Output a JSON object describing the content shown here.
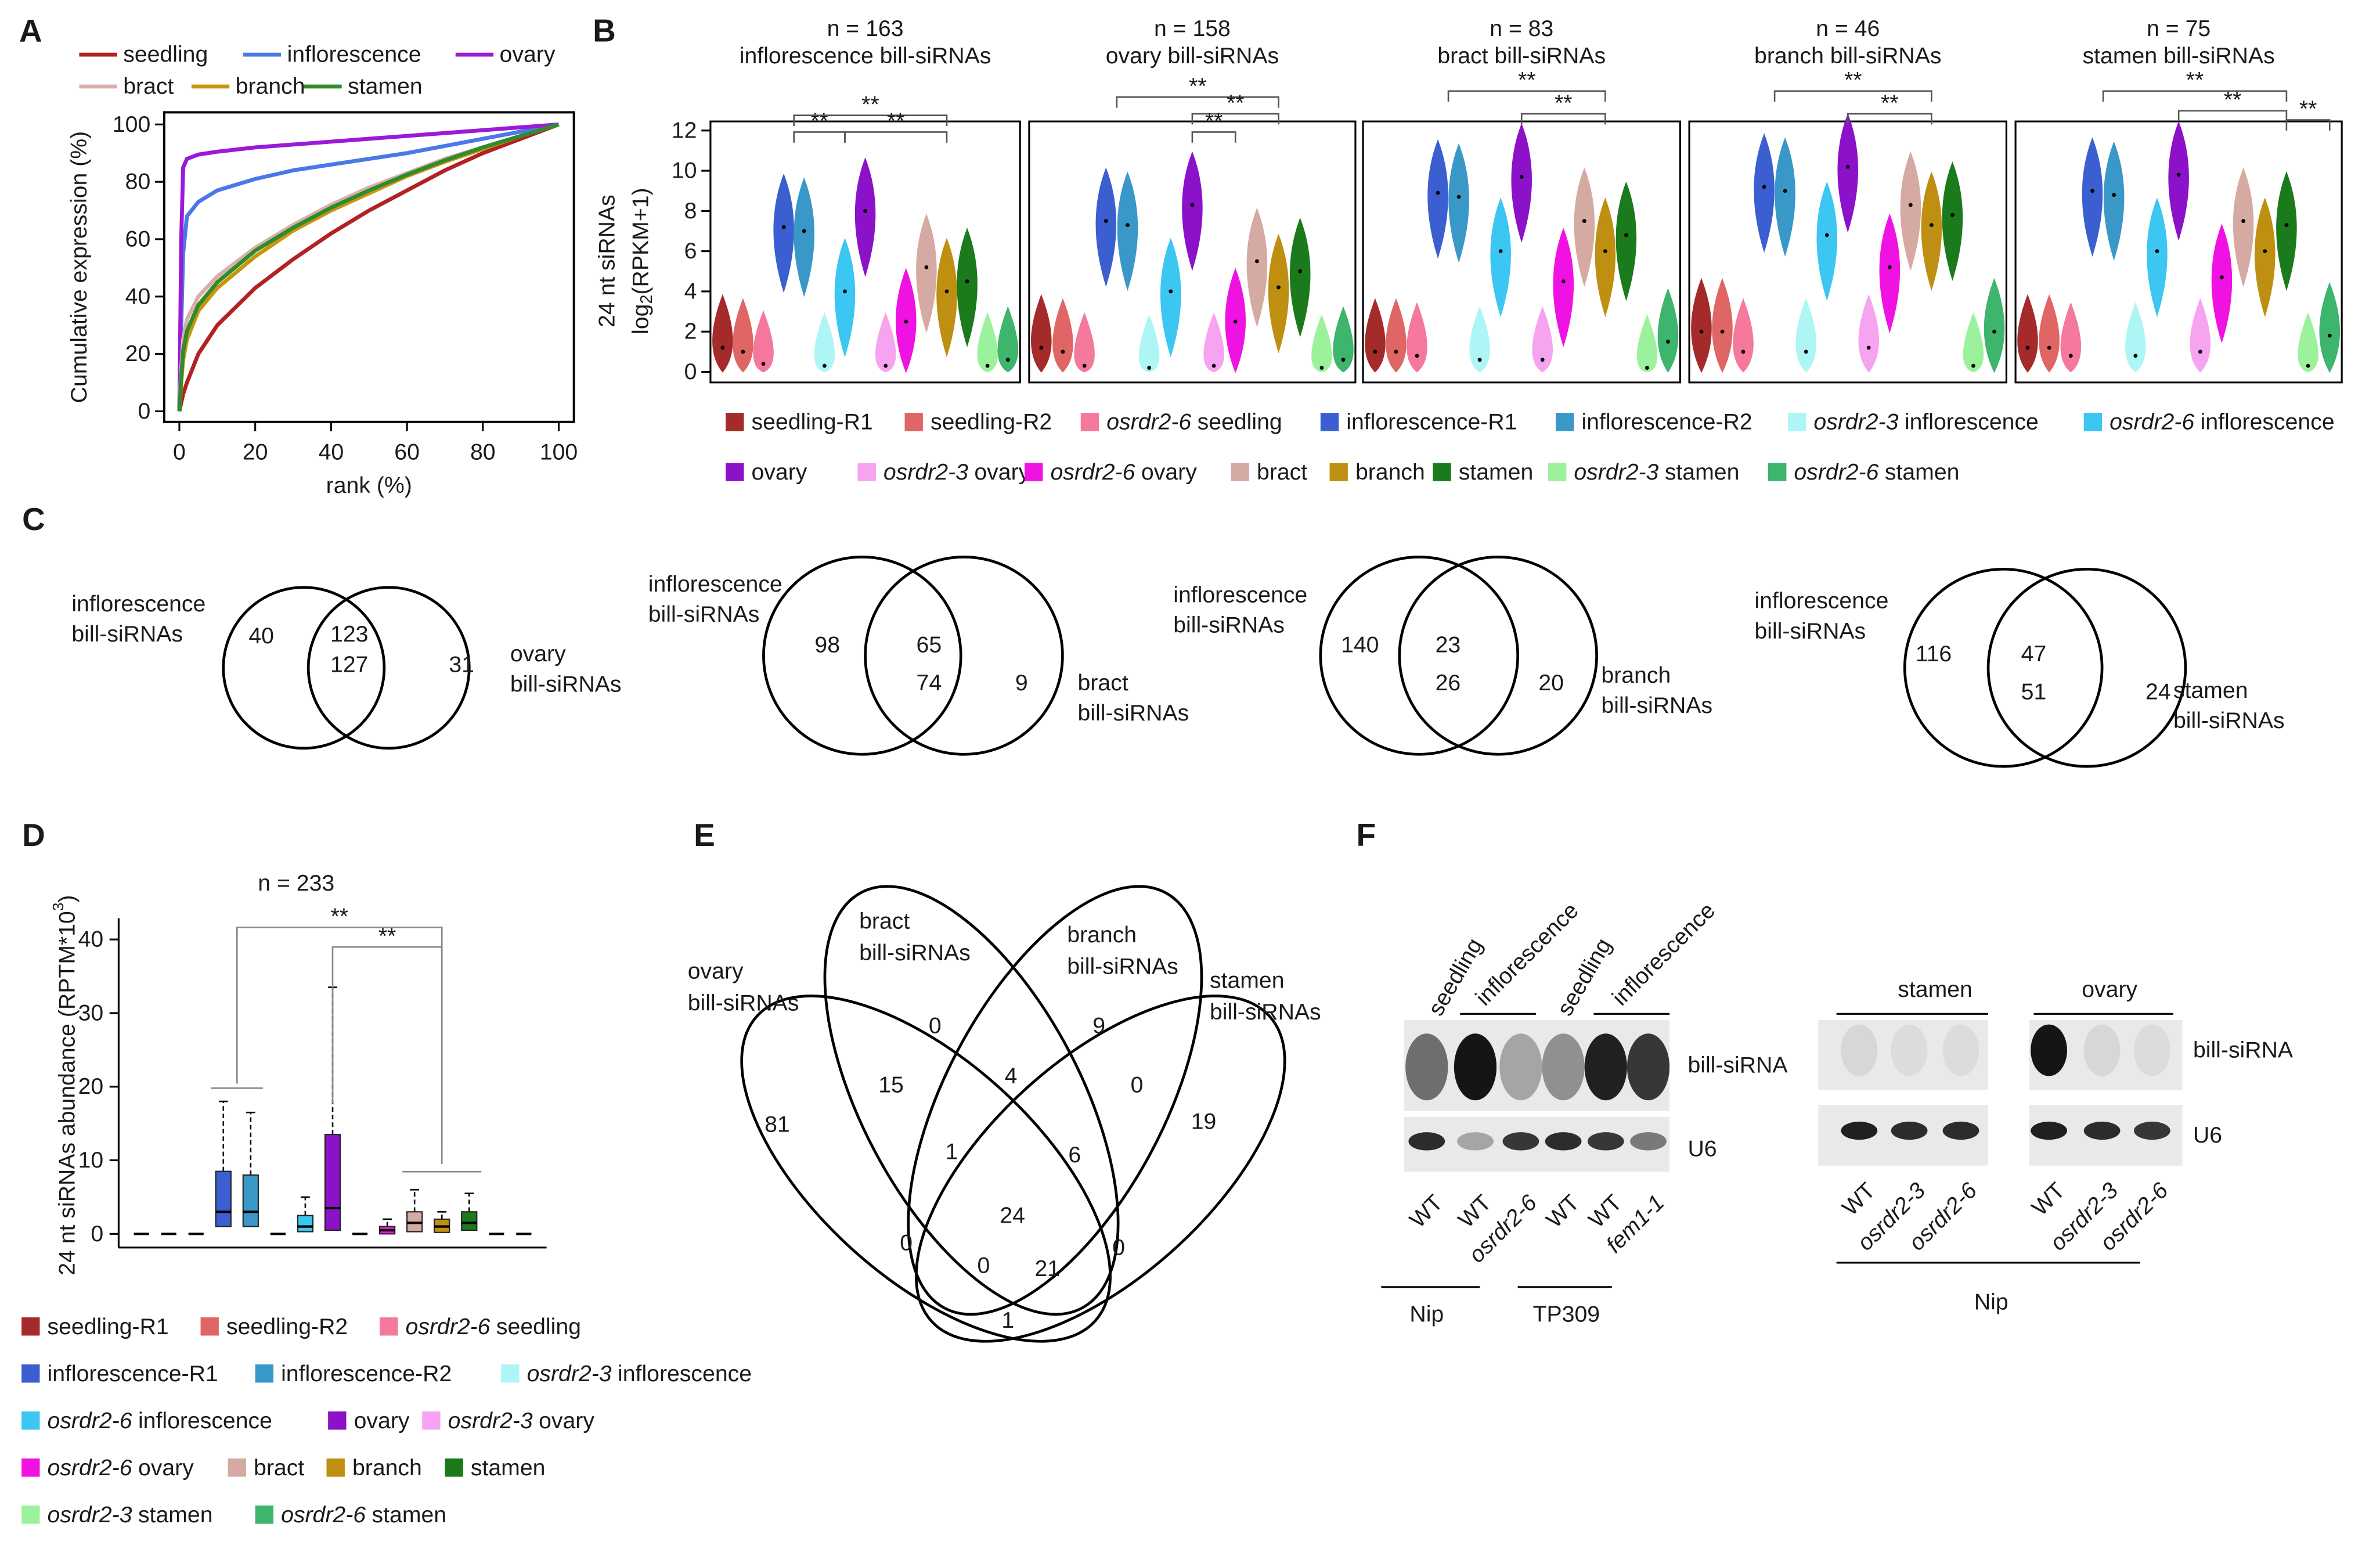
{
  "panels": {
    "A": {
      "letter": "A",
      "xlabel": "rank (%)",
      "ylabel": "Cumulative expression (%)",
      "xlim": [
        0,
        100
      ],
      "ylim": [
        0,
        100
      ],
      "xticks": [
        0,
        20,
        40,
        60,
        80,
        100
      ],
      "yticks": [
        0,
        20,
        40,
        60,
        80,
        100
      ],
      "x": [
        0,
        0.5,
        1,
        2,
        5,
        10,
        20,
        30,
        40,
        50,
        60,
        70,
        80,
        90,
        100
      ],
      "series": [
        {
          "name": "seedling",
          "color": "#b22222",
          "values": [
            0,
            3,
            6,
            10,
            20,
            30,
            43,
            53,
            62,
            70,
            77,
            84,
            90,
            95,
            100
          ]
        },
        {
          "name": "inflorescence",
          "color": "#4a78e8",
          "values": [
            0,
            30,
            55,
            68,
            73,
            77,
            81,
            84,
            86,
            88,
            90,
            92.5,
            95,
            97.5,
            100
          ]
        },
        {
          "name": "ovary",
          "color": "#9a1ad8",
          "values": [
            0,
            60,
            85,
            88,
            89.5,
            90.5,
            92,
            93,
            94,
            95,
            96,
            97,
            98,
            99,
            100
          ]
        },
        {
          "name": "bract",
          "color": "#d8b0a8",
          "values": [
            0,
            15,
            25,
            32,
            40,
            47,
            57,
            65,
            72,
            78,
            83,
            88,
            92,
            96,
            100
          ]
        },
        {
          "name": "branch",
          "color": "#c8960c",
          "values": [
            0,
            10,
            18,
            25,
            35,
            43,
            54,
            63,
            70,
            76,
            82,
            87,
            91.5,
            96,
            100
          ]
        },
        {
          "name": "stamen",
          "color": "#2e8b2e",
          "values": [
            0,
            12,
            21,
            28,
            37,
            45,
            56,
            64,
            71,
            77,
            82.5,
            87.5,
            92,
            96,
            100
          ]
        }
      ]
    },
    "B": {
      "letter": "B",
      "ylabel": [
        "24 nt siRNAs",
        "log",
        "2",
        "(RPKM+1)"
      ],
      "ylim": [
        0,
        12
      ],
      "yticks": [
        0,
        2,
        4,
        6,
        8,
        10,
        12
      ],
      "subpanels": [
        {
          "n": "n = 163",
          "title": "inflorescence bill-siRNAs",
          "stars": [
            "**",
            "**",
            "**"
          ],
          "medians": [
            1.2,
            1.0,
            0.4,
            7.2,
            7.0,
            0.3,
            4.0,
            8.0,
            0.3,
            2.5,
            5.2,
            4.0,
            4.5,
            0.3,
            0.6
          ]
        },
        {
          "n": "n = 158",
          "title": "ovary bill-siRNAs",
          "stars": [
            "**",
            "**",
            "**"
          ],
          "medians": [
            1.2,
            1.0,
            0.3,
            7.5,
            7.3,
            0.2,
            4.0,
            8.3,
            0.3,
            2.5,
            5.5,
            4.2,
            5.0,
            0.2,
            0.6
          ]
        },
        {
          "n": "n = 83",
          "title": "bract bill-siRNAs",
          "stars": [
            "**",
            "**"
          ],
          "medians": [
            1.0,
            1.0,
            0.8,
            8.9,
            8.7,
            0.6,
            6.0,
            9.7,
            0.6,
            4.5,
            7.5,
            6.0,
            6.8,
            0.2,
            1.5
          ]
        },
        {
          "n": "n = 46",
          "title": "branch bill-siRNAs",
          "stars": [
            "**",
            "**"
          ],
          "medians": [
            2.0,
            2.0,
            1.0,
            9.2,
            9.0,
            1.0,
            6.8,
            10.2,
            1.2,
            5.2,
            8.3,
            7.3,
            7.8,
            0.3,
            2.0
          ]
        },
        {
          "n": "n = 75",
          "title": "stamen bill-siRNAs",
          "stars": [
            "**",
            "**",
            "**"
          ],
          "medians": [
            1.2,
            1.2,
            0.8,
            9.0,
            8.8,
            0.8,
            6.0,
            9.8,
            1.0,
            4.7,
            7.5,
            6.0,
            7.3,
            0.3,
            1.8
          ]
        }
      ]
    },
    "C": {
      "letter": "C",
      "venns": [
        {
          "left": [
            "inflorescence",
            "bill-siRNAs"
          ],
          "right": [
            "ovary",
            "bill-siRNAs"
          ],
          "left_only": 40,
          "overlap": [
            123,
            127
          ],
          "right_only": 31
        },
        {
          "left": [
            "inflorescence",
            "bill-siRNAs"
          ],
          "right": [
            "bract",
            "bill-siRNAs"
          ],
          "left_only": 98,
          "overlap": [
            65,
            74
          ],
          "right_only": 9
        },
        {
          "left": [
            "inflorescence",
            "bill-siRNAs"
          ],
          "right": [
            "branch",
            "bill-siRNAs"
          ],
          "left_only": 140,
          "overlap": [
            23,
            26
          ],
          "right_only": 20
        },
        {
          "left": [
            "inflorescence",
            "bill-siRNAs"
          ],
          "right": [
            "stamen",
            "bill-siRNAs"
          ],
          "left_only": 116,
          "overlap": [
            47,
            51
          ],
          "right_only": 24
        }
      ]
    },
    "D": {
      "letter": "D",
      "title": "n = 233",
      "ylabel": [
        "24 nt siRNAs abundance (RPTM*10",
        "3",
        ")"
      ],
      "ylim": [
        0,
        40
      ],
      "yticks": [
        0,
        10,
        20,
        30,
        40
      ],
      "stars": [
        "**",
        "**"
      ],
      "medians": [
        0,
        0,
        0,
        3,
        3,
        0,
        1,
        3.5,
        0,
        0.5,
        1.5,
        1,
        1.5,
        0,
        0
      ],
      "q1": [
        0,
        0,
        0,
        1,
        1,
        0,
        0.3,
        0.5,
        0,
        0,
        0.3,
        0.2,
        0.5,
        0,
        0
      ],
      "q3": [
        0,
        0,
        0,
        8.5,
        8,
        0,
        2.5,
        13.5,
        0,
        1,
        3,
        2,
        3,
        0,
        0
      ],
      "upper": [
        0,
        0,
        0,
        18,
        16.5,
        0,
        5,
        33.5,
        0,
        2,
        6,
        3,
        5.5,
        0,
        0
      ]
    },
    "E": {
      "letter": "E",
      "sets": [
        [
          "ovary",
          "bill-siRNAs"
        ],
        [
          "bract",
          "bill-siRNAs"
        ],
        [
          "branch",
          "bill-siRNAs"
        ],
        [
          "stamen",
          "bill-siRNAs"
        ]
      ],
      "counts": [
        0,
        9,
        15,
        4,
        0,
        81,
        19,
        1,
        6,
        24,
        0,
        0,
        0,
        21,
        1
      ]
    },
    "F": {
      "letter": "F",
      "left": {
        "top_labels": [
          "seedling",
          "inflorescence",
          "seedling",
          "inflorescence"
        ],
        "bands": [
          "bill-siRNA",
          "U6"
        ],
        "lanes": [
          {
            "text": "WT"
          },
          {
            "text": "WT"
          },
          {
            "text": "osrdr2-6",
            "italic": true
          },
          {
            "text": "WT"
          },
          {
            "text": "WT"
          },
          {
            "text": "fem1-1",
            "italic": true
          }
        ],
        "strains": [
          "Nip",
          "TP309"
        ]
      },
      "right": {
        "top_labels": [
          "stamen",
          "ovary"
        ],
        "bands": [
          "bill-siRNA",
          "U6"
        ],
        "lanes": [
          {
            "text": "WT"
          },
          {
            "text": "osrdr2-3",
            "italic": true
          },
          {
            "text": "osrdr2-6",
            "italic": true
          },
          {
            "text": "WT"
          },
          {
            "text": "osrdr2-3",
            "italic": true
          },
          {
            "text": "osrdr2-6",
            "italic": true
          }
        ],
        "strains": [
          "Nip"
        ]
      }
    }
  },
  "groups": [
    {
      "label": "seedling-R1",
      "color": "#a52a2a"
    },
    {
      "label": "seedling-R2",
      "color": "#e06666"
    },
    {
      "mutant": "osrdr2-6",
      "label": "seedling",
      "color": "#f4799c"
    },
    {
      "label": "inflorescence-R1",
      "color": "#3b5fd0"
    },
    {
      "label": "inflorescence-R2",
      "color": "#3a98c8"
    },
    {
      "mutant": "osrdr2-3",
      "label": "inflorescence",
      "color": "#aef5f5"
    },
    {
      "mutant": "osrdr2-6",
      "label": "inflorescence",
      "color": "#3cc6f2"
    },
    {
      "label": "ovary",
      "color": "#8b12c8"
    },
    {
      "mutant": "osrdr2-3",
      "label": "ovary",
      "color": "#f6a4f0"
    },
    {
      "mutant": "osrdr2-6",
      "label": "ovary",
      "color": "#f012e2"
    },
    {
      "label": "bract",
      "color": "#d4aaa2"
    },
    {
      "label": "branch",
      "color": "#bf8f12"
    },
    {
      "label": "stamen",
      "color": "#1b7a1b"
    },
    {
      "mutant": "osrdr2-3",
      "label": "stamen",
      "color": "#9cf29c"
    },
    {
      "mutant": "osrdr2-6",
      "label": "stamen",
      "color": "#3db56d"
    }
  ]
}
